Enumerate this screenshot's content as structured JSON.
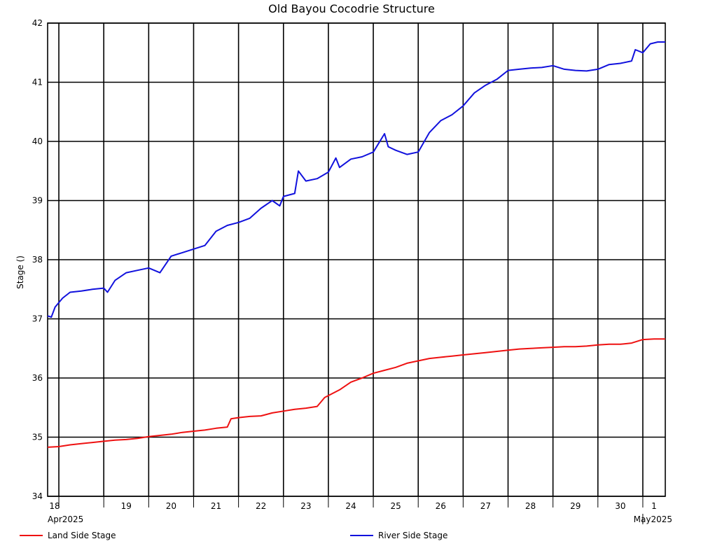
{
  "chart_data": {
    "type": "line",
    "title": "Old Bayou Cocodrie Structure",
    "ylabel": "Stage ()",
    "xlabel": "",
    "ylim": [
      34,
      42
    ],
    "yticks": [
      "34",
      "35",
      "36",
      "37",
      "38",
      "39",
      "40",
      "41",
      "42"
    ],
    "x_day_labels": [
      "18",
      "19",
      "20",
      "21",
      "22",
      "23",
      "24",
      "25",
      "26",
      "27",
      "28",
      "29",
      "30",
      "1"
    ],
    "x_month_labels": [
      "Apr2025",
      "May2025"
    ],
    "xlim": [
      "2025-04-17T18:00",
      "2025-05-01T12:00"
    ],
    "grid": true,
    "legend_position": "bottom",
    "series": [
      {
        "name": "Land Side Stage",
        "color": "#ee1111",
        "points": [
          [
            "2025-04-17T18:00",
            34.83
          ],
          [
            "2025-04-18T00:00",
            34.84
          ],
          [
            "2025-04-18T06:00",
            34.87
          ],
          [
            "2025-04-18T12:00",
            34.89
          ],
          [
            "2025-04-18T18:00",
            34.91
          ],
          [
            "2025-04-19T00:00",
            34.93
          ],
          [
            "2025-04-19T06:00",
            34.95
          ],
          [
            "2025-04-19T12:00",
            34.96
          ],
          [
            "2025-04-19T18:00",
            34.98
          ],
          [
            "2025-04-20T00:00",
            35.01
          ],
          [
            "2025-04-20T06:00",
            35.03
          ],
          [
            "2025-04-20T12:00",
            35.05
          ],
          [
            "2025-04-20T18:00",
            35.08
          ],
          [
            "2025-04-21T00:00",
            35.1
          ],
          [
            "2025-04-21T06:00",
            35.12
          ],
          [
            "2025-04-21T12:00",
            35.15
          ],
          [
            "2025-04-21T18:00",
            35.17
          ],
          [
            "2025-04-21T20:00",
            35.31
          ],
          [
            "2025-04-22T00:00",
            35.33
          ],
          [
            "2025-04-22T06:00",
            35.35
          ],
          [
            "2025-04-22T12:00",
            35.36
          ],
          [
            "2025-04-22T18:00",
            35.41
          ],
          [
            "2025-04-23T00:00",
            35.44
          ],
          [
            "2025-04-23T06:00",
            35.47
          ],
          [
            "2025-04-23T12:00",
            35.49
          ],
          [
            "2025-04-23T18:00",
            35.52
          ],
          [
            "2025-04-23T22:00",
            35.67
          ],
          [
            "2025-04-24T06:00",
            35.8
          ],
          [
            "2025-04-24T12:00",
            35.93
          ],
          [
            "2025-04-24T18:00",
            36.0
          ],
          [
            "2025-04-25T00:00",
            36.08
          ],
          [
            "2025-04-25T06:00",
            36.13
          ],
          [
            "2025-04-25T12:00",
            36.18
          ],
          [
            "2025-04-25T18:00",
            36.25
          ],
          [
            "2025-04-26T00:00",
            36.29
          ],
          [
            "2025-04-26T06:00",
            36.33
          ],
          [
            "2025-04-26T12:00",
            36.35
          ],
          [
            "2025-04-26T18:00",
            36.37
          ],
          [
            "2025-04-27T00:00",
            36.39
          ],
          [
            "2025-04-27T06:00",
            36.41
          ],
          [
            "2025-04-27T12:00",
            36.43
          ],
          [
            "2025-04-27T18:00",
            36.45
          ],
          [
            "2025-04-28T00:00",
            36.47
          ],
          [
            "2025-04-28T06:00",
            36.49
          ],
          [
            "2025-04-28T12:00",
            36.5
          ],
          [
            "2025-04-28T18:00",
            36.51
          ],
          [
            "2025-04-29T00:00",
            36.52
          ],
          [
            "2025-04-29T06:00",
            36.53
          ],
          [
            "2025-04-29T12:00",
            36.53
          ],
          [
            "2025-04-29T18:00",
            36.54
          ],
          [
            "2025-04-30T00:00",
            36.56
          ],
          [
            "2025-04-30T06:00",
            36.57
          ],
          [
            "2025-04-30T12:00",
            36.57
          ],
          [
            "2025-04-30T18:00",
            36.59
          ],
          [
            "2025-05-01T00:00",
            36.65
          ],
          [
            "2025-05-01T06:00",
            36.66
          ],
          [
            "2025-05-01T12:00",
            36.66
          ]
        ]
      },
      {
        "name": "River Side Stage",
        "color": "#1111dd",
        "points": [
          [
            "2025-04-17T18:00",
            37.05
          ],
          [
            "2025-04-17T20:00",
            37.03
          ],
          [
            "2025-04-17T22:00",
            37.2
          ],
          [
            "2025-04-18T02:00",
            37.35
          ],
          [
            "2025-04-18T06:00",
            37.45
          ],
          [
            "2025-04-18T12:00",
            37.47
          ],
          [
            "2025-04-18T18:00",
            37.5
          ],
          [
            "2025-04-19T00:00",
            37.52
          ],
          [
            "2025-04-19T02:00",
            37.45
          ],
          [
            "2025-04-19T06:00",
            37.65
          ],
          [
            "2025-04-19T12:00",
            37.78
          ],
          [
            "2025-04-19T18:00",
            37.82
          ],
          [
            "2025-04-20T00:00",
            37.86
          ],
          [
            "2025-04-20T06:00",
            37.78
          ],
          [
            "2025-04-20T12:00",
            38.06
          ],
          [
            "2025-04-20T18:00",
            38.12
          ],
          [
            "2025-04-21T00:00",
            38.18
          ],
          [
            "2025-04-21T06:00",
            38.24
          ],
          [
            "2025-04-21T12:00",
            38.48
          ],
          [
            "2025-04-21T18:00",
            38.58
          ],
          [
            "2025-04-22T00:00",
            38.63
          ],
          [
            "2025-04-22T06:00",
            38.7
          ],
          [
            "2025-04-22T12:00",
            38.87
          ],
          [
            "2025-04-22T18:00",
            39.0
          ],
          [
            "2025-04-22T22:00",
            38.91
          ],
          [
            "2025-04-23T00:00",
            39.07
          ],
          [
            "2025-04-23T06:00",
            39.12
          ],
          [
            "2025-04-23T08:00",
            39.5
          ],
          [
            "2025-04-23T12:00",
            39.33
          ],
          [
            "2025-04-23T18:00",
            39.37
          ],
          [
            "2025-04-24T00:00",
            39.48
          ],
          [
            "2025-04-24T04:00",
            39.72
          ],
          [
            "2025-04-24T06:00",
            39.56
          ],
          [
            "2025-04-24T12:00",
            39.7
          ],
          [
            "2025-04-24T18:00",
            39.74
          ],
          [
            "2025-04-25T00:00",
            39.82
          ],
          [
            "2025-04-25T06:00",
            40.13
          ],
          [
            "2025-04-25T08:00",
            39.91
          ],
          [
            "2025-04-25T12:00",
            39.85
          ],
          [
            "2025-04-25T18:00",
            39.78
          ],
          [
            "2025-04-26T00:00",
            39.82
          ],
          [
            "2025-04-26T06:00",
            40.15
          ],
          [
            "2025-04-26T12:00",
            40.35
          ],
          [
            "2025-04-26T18:00",
            40.45
          ],
          [
            "2025-04-27T00:00",
            40.6
          ],
          [
            "2025-04-27T06:00",
            40.82
          ],
          [
            "2025-04-27T12:00",
            40.95
          ],
          [
            "2025-04-27T18:00",
            41.05
          ],
          [
            "2025-04-28T00:00",
            41.2
          ],
          [
            "2025-04-28T06:00",
            41.22
          ],
          [
            "2025-04-28T12:00",
            41.24
          ],
          [
            "2025-04-28T18:00",
            41.25
          ],
          [
            "2025-04-29T00:00",
            41.28
          ],
          [
            "2025-04-29T06:00",
            41.22
          ],
          [
            "2025-04-29T12:00",
            41.2
          ],
          [
            "2025-04-29T18:00",
            41.19
          ],
          [
            "2025-04-30T00:00",
            41.22
          ],
          [
            "2025-04-30T06:00",
            41.3
          ],
          [
            "2025-04-30T12:00",
            41.32
          ],
          [
            "2025-04-30T18:00",
            41.36
          ],
          [
            "2025-04-30T20:00",
            41.55
          ],
          [
            "2025-05-01T00:00",
            41.5
          ],
          [
            "2025-05-01T04:00",
            41.65
          ],
          [
            "2025-05-01T08:00",
            41.68
          ],
          [
            "2025-05-01T12:00",
            41.68
          ]
        ]
      }
    ]
  }
}
